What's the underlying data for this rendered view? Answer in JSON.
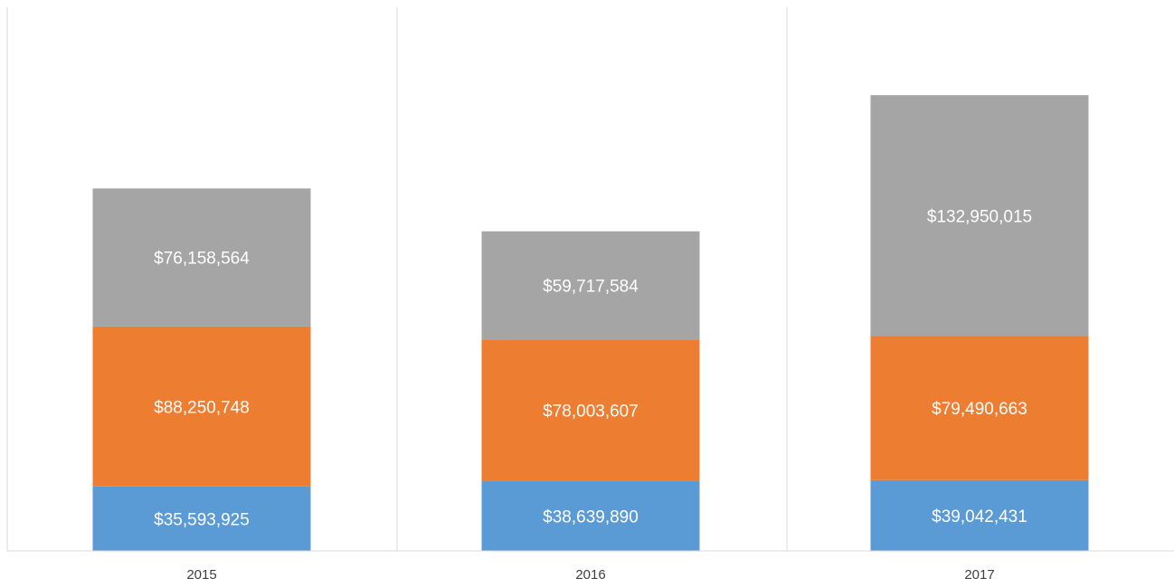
{
  "chart_data": {
    "type": "stacked_bar",
    "categories": [
      "2015",
      "2016",
      "2017"
    ],
    "series": [
      {
        "color": "#5b9bd5",
        "values": [
          35593925,
          38639890,
          39042431
        ],
        "value_labels": [
          "$35,593,925",
          "$38,639,890",
          "$39,042,431"
        ]
      },
      {
        "color": "#ed7d31",
        "values": [
          88250748,
          78003607,
          79490663
        ],
        "value_labels": [
          "$88,250,748",
          "$78,003,607",
          "$79,490,663"
        ]
      },
      {
        "color": "#a5a5a5",
        "values": [
          76158564,
          59717584,
          132950015
        ],
        "value_labels": [
          "$76,158,564",
          "$59,717,584",
          "$132,950,015"
        ]
      }
    ],
    "ylim": [
      0,
      300000000
    ]
  }
}
